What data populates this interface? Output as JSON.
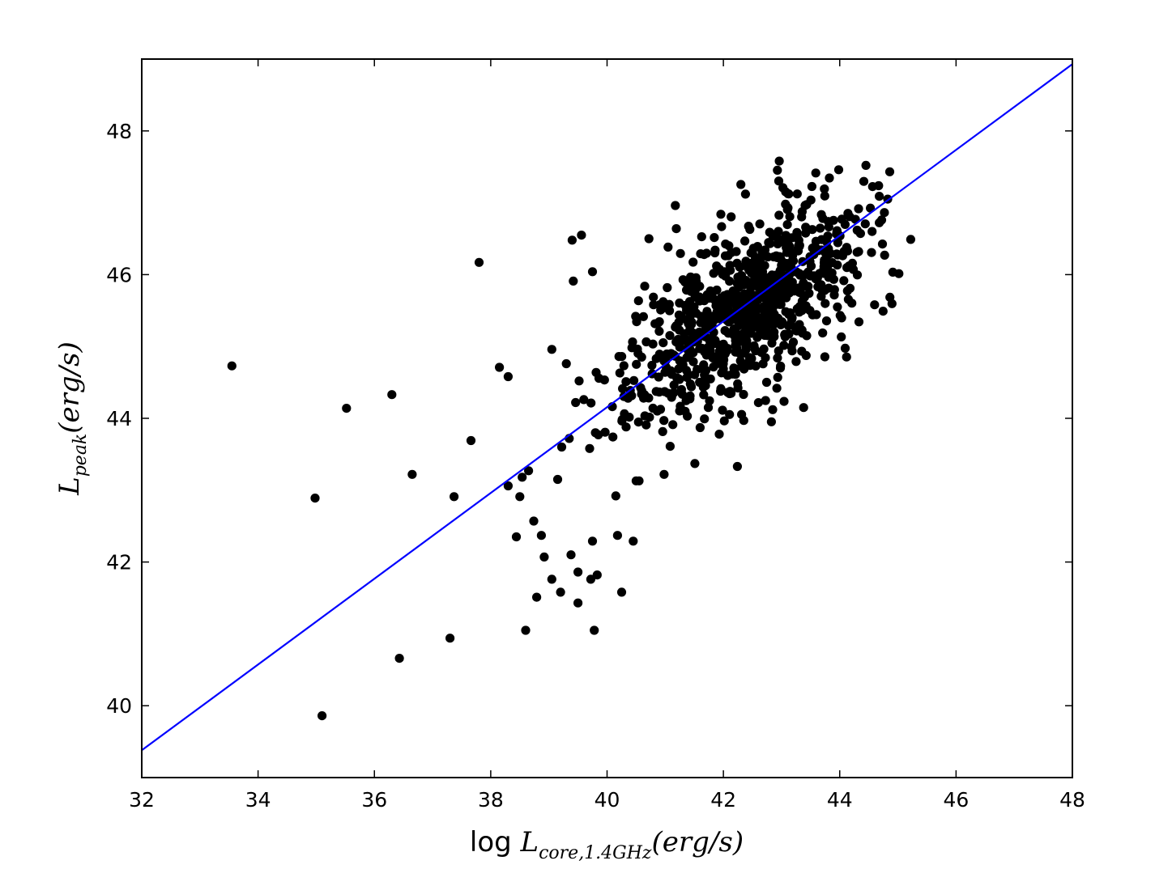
{
  "chart_data": {
    "type": "scatter",
    "title": "",
    "xlabel": {
      "prefix": "log ",
      "main": "L",
      "sub": "core,1.4GHz",
      "suffix": "(erg/s)"
    },
    "ylabel": {
      "main": "L",
      "sub": "peak",
      "suffix": "(erg/s)"
    },
    "xlim": [
      32,
      48
    ],
    "ylim": [
      39,
      49
    ],
    "xticks": [
      "32",
      "34",
      "36",
      "38",
      "40",
      "42",
      "44",
      "46",
      "48"
    ],
    "yticks": [
      "40",
      "42",
      "44",
      "46",
      "48"
    ],
    "grid": false,
    "colors": {
      "points": "#000000",
      "fit_line": "#0000ff"
    },
    "fit_line": {
      "x": [
        32,
        48
      ],
      "y": [
        39.38,
        48.93
      ]
    },
    "outliers": [
      [
        33.55,
        44.73
      ],
      [
        34.98,
        42.89
      ],
      [
        35.52,
        44.14
      ],
      [
        35.1,
        39.86
      ],
      [
        36.3,
        44.33
      ],
      [
        36.65,
        43.22
      ],
      [
        36.43,
        40.66
      ],
      [
        37.3,
        40.94
      ],
      [
        37.37,
        42.91
      ],
      [
        37.66,
        43.69
      ],
      [
        37.8,
        46.17
      ],
      [
        38.15,
        44.71
      ],
      [
        38.3,
        44.58
      ],
      [
        38.3,
        43.06
      ],
      [
        38.44,
        42.35
      ],
      [
        38.5,
        42.91
      ],
      [
        38.54,
        43.18
      ],
      [
        38.6,
        41.05
      ],
      [
        38.65,
        43.27
      ],
      [
        38.74,
        42.57
      ],
      [
        38.79,
        41.51
      ],
      [
        38.87,
        42.37
      ],
      [
        38.92,
        42.07
      ],
      [
        39.05,
        41.76
      ],
      [
        39.05,
        44.96
      ],
      [
        39.15,
        43.15
      ],
      [
        39.2,
        41.58
      ],
      [
        39.22,
        43.6
      ],
      [
        39.3,
        44.76
      ],
      [
        39.35,
        43.72
      ],
      [
        39.38,
        42.1
      ],
      [
        39.4,
        46.48
      ],
      [
        39.42,
        45.91
      ],
      [
        39.46,
        44.22
      ],
      [
        39.5,
        41.43
      ],
      [
        39.5,
        41.86
      ],
      [
        39.52,
        44.52
      ],
      [
        39.56,
        46.55
      ],
      [
        39.6,
        44.26
      ],
      [
        39.7,
        43.58
      ],
      [
        39.72,
        41.76
      ],
      [
        39.75,
        42.29
      ],
      [
        39.75,
        46.04
      ],
      [
        39.78,
        41.05
      ],
      [
        39.8,
        43.8
      ],
      [
        39.83,
        41.82
      ],
      [
        39.85,
        43.77
      ],
      [
        40.1,
        43.74
      ],
      [
        40.15,
        42.92
      ],
      [
        40.18,
        42.37
      ],
      [
        40.25,
        41.58
      ],
      [
        40.45,
        42.29
      ],
      [
        40.5,
        43.13
      ],
      [
        40.55,
        43.13
      ],
      [
        40.72,
        46.5
      ],
      [
        40.98,
        43.22
      ],
      [
        41.19,
        46.64
      ],
      [
        41.51,
        43.37
      ],
      [
        41.6,
        43.87
      ],
      [
        42.24,
        43.33
      ],
      [
        42.35,
        43.97
      ],
      [
        43.38,
        44.15
      ],
      [
        43.25,
        44.79
      ],
      [
        44.6,
        45.58
      ],
      [
        45.22,
        46.49
      ],
      [
        44.72,
        46.76
      ],
      [
        44.68,
        47.09
      ],
      [
        44.45,
        47.52
      ],
      [
        42.96,
        47.58
      ],
      [
        42.38,
        47.12
      ]
    ],
    "cluster": {
      "n_points": 840,
      "seed": 17,
      "mean_x": 42.4,
      "sd_major": 1.15,
      "sd_minor": 0.5,
      "slope": 0.62,
      "intercept": 45.55,
      "x_range": [
        39.7,
        45.1
      ],
      "y_range": [
        43.6,
        47.6
      ]
    }
  }
}
